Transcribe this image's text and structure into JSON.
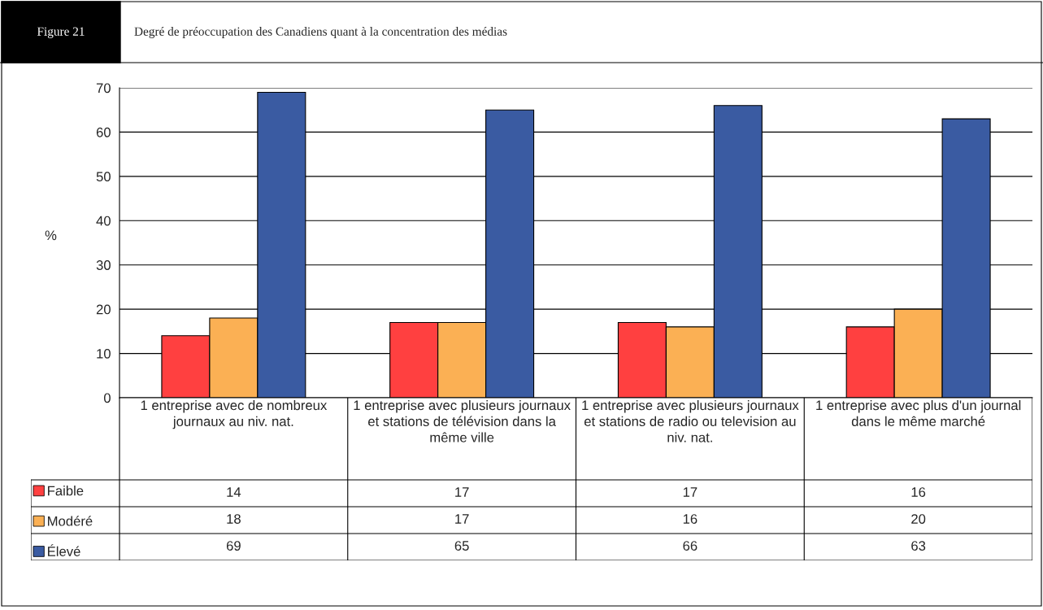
{
  "chart_data": {
    "type": "bar",
    "title": "Degré de préoccupation des Canadiens quant à la concentration des médias",
    "annotations": [
      "Figure 21"
    ],
    "ylabel": "%",
    "categories": [
      "1 entreprise avec de nombreux journaux au niv. nat.",
      "1 entreprise avec plusieurs journaux et stations de télévision dans la même ville",
      "1 entreprise avec plusieurs journaux et stations de radio ou television au niv. nat.",
      "1 entreprise avec plus d'un journal dans le même marché"
    ],
    "series": [
      {
        "name": "Faible",
        "color": "#ff4040",
        "values": [
          14,
          17,
          17,
          16
        ]
      },
      {
        "name": "Modéré",
        "color": "#fbb054",
        "values": [
          18,
          17,
          16,
          20
        ]
      },
      {
        "name": "Élevé",
        "color": "#3a5ba2",
        "values": [
          69,
          65,
          66,
          63
        ]
      }
    ],
    "ylim": [
      0,
      70
    ],
    "yticks": [
      0,
      10,
      20,
      30,
      40,
      50,
      60,
      70
    ],
    "grid": "y",
    "data_labels": true,
    "legend": "bottom"
  }
}
